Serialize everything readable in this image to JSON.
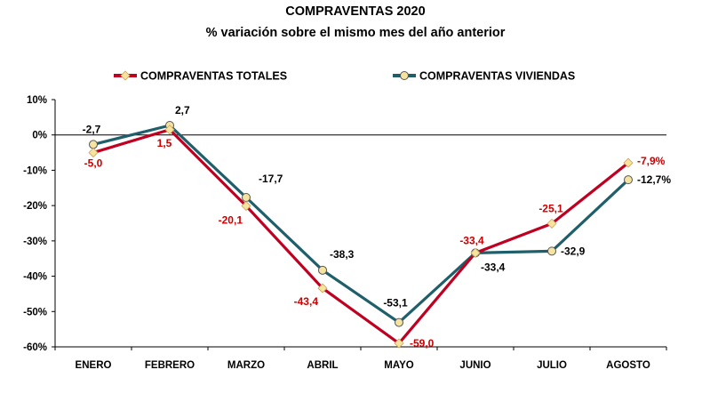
{
  "chart_data": {
    "type": "line",
    "title": "COMPRAVENTAS  2020",
    "subtitle": "% variación sobre el mismo mes del año anterior",
    "categories": [
      "ENERO",
      "FEBRERO",
      "MARZO",
      "ABRIL",
      "MAYO",
      "JUNIO",
      "JULIO",
      "AGOSTO"
    ],
    "series": [
      {
        "name": "COMPRAVENTAS TOTALES",
        "color": "#c00020",
        "marker": "diamond",
        "marker_color": "#f6e3a0",
        "label_color": "#cc0000",
        "values": [
          -5.0,
          1.5,
          -20.1,
          -43.4,
          -59.0,
          -33.4,
          -25.1,
          -7.9
        ],
        "labels": [
          "-5,0",
          "1,5",
          "-20,1",
          "-43,4",
          "-59,0",
          "-33,4",
          "-25,1",
          "-7,9%"
        ]
      },
      {
        "name": "COMPRAVENTAS VIVIENDAS",
        "color": "#1f5f6b",
        "marker": "circle",
        "marker_color": "#f6e3a0",
        "label_color": "#000000",
        "values": [
          -2.7,
          2.7,
          -17.7,
          -38.3,
          -53.1,
          -33.4,
          -32.9,
          -12.7
        ],
        "labels": [
          "-2,7",
          "2,7",
          "-17,7",
          "-38,3",
          "-53,1",
          "-33,4",
          "-32,9",
          "-12,7%"
        ]
      }
    ],
    "ylim": [
      -60,
      10
    ],
    "yticks": [
      10,
      0,
      -10,
      -20,
      -30,
      -40,
      -50,
      -60
    ],
    "ytick_labels": [
      "10%",
      "0%",
      "-10%",
      "-20%",
      "-30%",
      "-40%",
      "-50%",
      "-60%"
    ],
    "legend_position": "top",
    "grid": false
  }
}
